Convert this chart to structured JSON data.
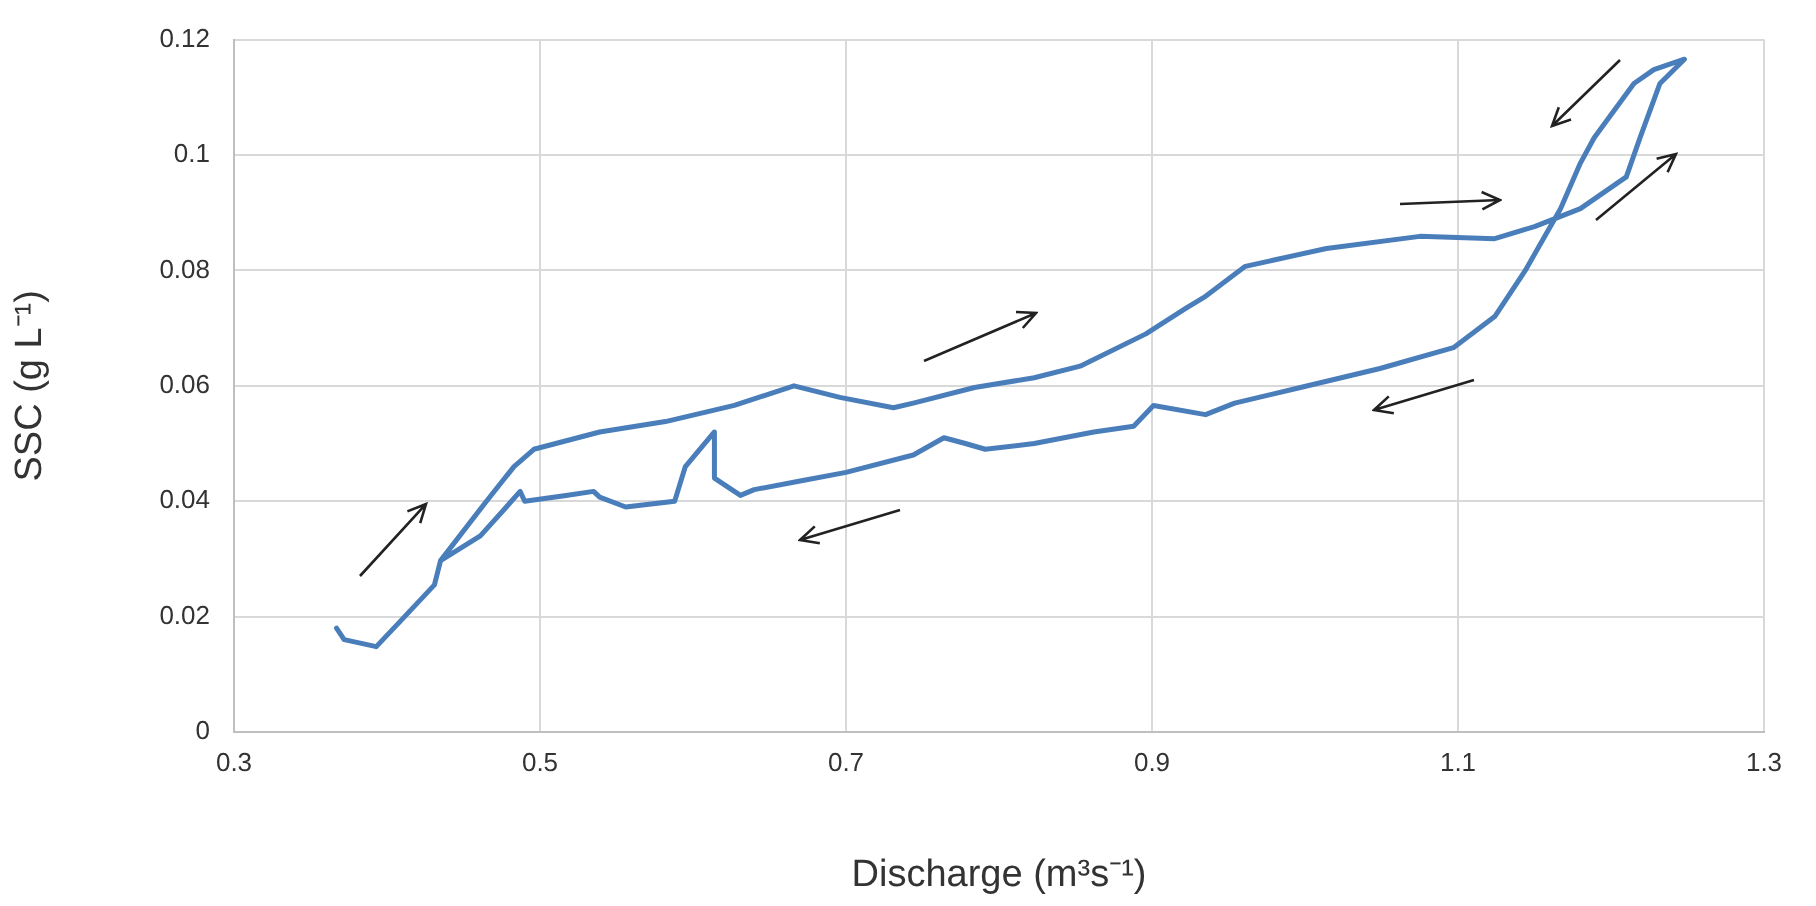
{
  "chart_data": {
    "type": "line",
    "xlabel": "Discharge (m³s⁻¹)",
    "ylabel": "SSC (g L⁻¹)",
    "xlim": [
      0.3,
      1.3
    ],
    "xticks": [
      0.3,
      0.5,
      0.7,
      0.9,
      1.1,
      1.3
    ],
    "ylim": [
      0,
      0.12
    ],
    "yticks": [
      0,
      0.02,
      0.04,
      0.06,
      0.08,
      0.1,
      0.12
    ],
    "grid": true,
    "legend": false,
    "series": [
      {
        "color": "#4a7ebb",
        "x": [
          0.367,
          0.372,
          0.393,
          0.408,
          0.431,
          0.435,
          0.465,
          0.483,
          0.496,
          0.539,
          0.582,
          0.627,
          0.666,
          0.696,
          0.731,
          0.744,
          0.784,
          0.823,
          0.853,
          0.896,
          0.922,
          0.935,
          0.961,
          1.014,
          1.075,
          1.124,
          1.15,
          1.18,
          1.21,
          1.219,
          1.232,
          1.248,
          1.228,
          1.215,
          1.189,
          1.18,
          1.167,
          1.144,
          1.124,
          1.097,
          1.049,
          0.997,
          0.954,
          0.935,
          0.901,
          0.888,
          0.862,
          0.823,
          0.791,
          0.778,
          0.764,
          0.744,
          0.7,
          0.67,
          0.64,
          0.631,
          0.614,
          0.614,
          0.595,
          0.588,
          0.556,
          0.539,
          0.535,
          0.517,
          0.49,
          0.487,
          0.478,
          0.461,
          0.435,
          0.431,
          0.408,
          0.393
        ],
        "values": [
          0.018,
          0.016,
          0.0148,
          0.019,
          0.0255,
          0.0297,
          0.04,
          0.046,
          0.049,
          0.052,
          0.0538,
          0.0566,
          0.06,
          0.058,
          0.0562,
          0.057,
          0.0597,
          0.0614,
          0.0634,
          0.069,
          0.0734,
          0.0755,
          0.0807,
          0.0838,
          0.0859,
          0.0855,
          0.0876,
          0.0907,
          0.0962,
          0.103,
          0.1124,
          0.1166,
          0.1148,
          0.1124,
          0.103,
          0.0986,
          0.0907,
          0.08,
          0.072,
          0.0666,
          0.063,
          0.0597,
          0.057,
          0.055,
          0.0566,
          0.053,
          0.052,
          0.05,
          0.049,
          0.05,
          0.051,
          0.048,
          0.045,
          0.0435,
          0.042,
          0.041,
          0.044,
          0.052,
          0.046,
          0.04,
          0.039,
          0.0407,
          0.0417,
          0.041,
          0.04,
          0.0417,
          0.039,
          0.034,
          0.0297,
          0.0255,
          0.019,
          0.0148
        ]
      }
    ]
  }
}
